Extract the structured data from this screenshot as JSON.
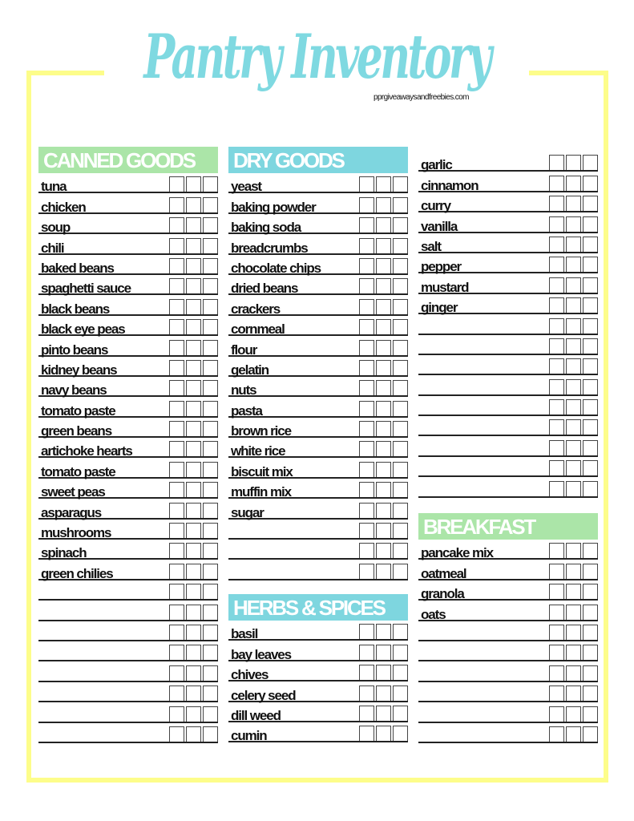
{
  "title": "Pantry Inventory",
  "website": "pprgiveawaysandfreebies.com",
  "colors": {
    "border": "#fdfd8a",
    "title": "#7fd9e1",
    "green_header": "#abe5a8",
    "blue_header": "#7ed6df"
  },
  "sections": {
    "canned": {
      "heading": "CANNED GOODS",
      "items": [
        "tuna",
        "chicken",
        "soup",
        "chili",
        "baked beans",
        "spaghetti sauce",
        "black beans",
        "black eye peas",
        "pinto beans",
        "kidney beans",
        "navy beans",
        "tomato paste",
        "green beans",
        "artichoke hearts",
        "tomato paste",
        "sweet peas",
        "asparagus",
        "mushrooms",
        "spinach",
        "green chilies"
      ],
      "blank_rows": 8
    },
    "dry": {
      "heading": "DRY GOODS",
      "items": [
        "yeast",
        "baking powder",
        "baking soda",
        "breadcrumbs",
        "chocolate chips",
        "dried beans",
        "crackers",
        "cornmeal",
        "flour",
        "gelatin",
        "nuts",
        "pasta",
        "brown rice",
        "white rice",
        "biscuit mix",
        "muffin mix",
        "sugar"
      ],
      "blank_rows": 3
    },
    "herbs": {
      "heading": "HERBS & SPICES",
      "items": [
        "basil",
        "bay leaves",
        "chives",
        "celery seed",
        "dill weed",
        "cumin"
      ],
      "blank_rows": 0
    },
    "spices_cont": {
      "items": [
        "garlic",
        "cinnamon",
        "curry",
        "vanilla",
        "salt",
        "pepper",
        "mustard",
        "ginger"
      ],
      "blank_rows": 9
    },
    "breakfast": {
      "heading": "BREAKFAST",
      "items": [
        "pancake mix",
        "oatmeal",
        "granola",
        "oats"
      ],
      "blank_rows": 6
    }
  }
}
